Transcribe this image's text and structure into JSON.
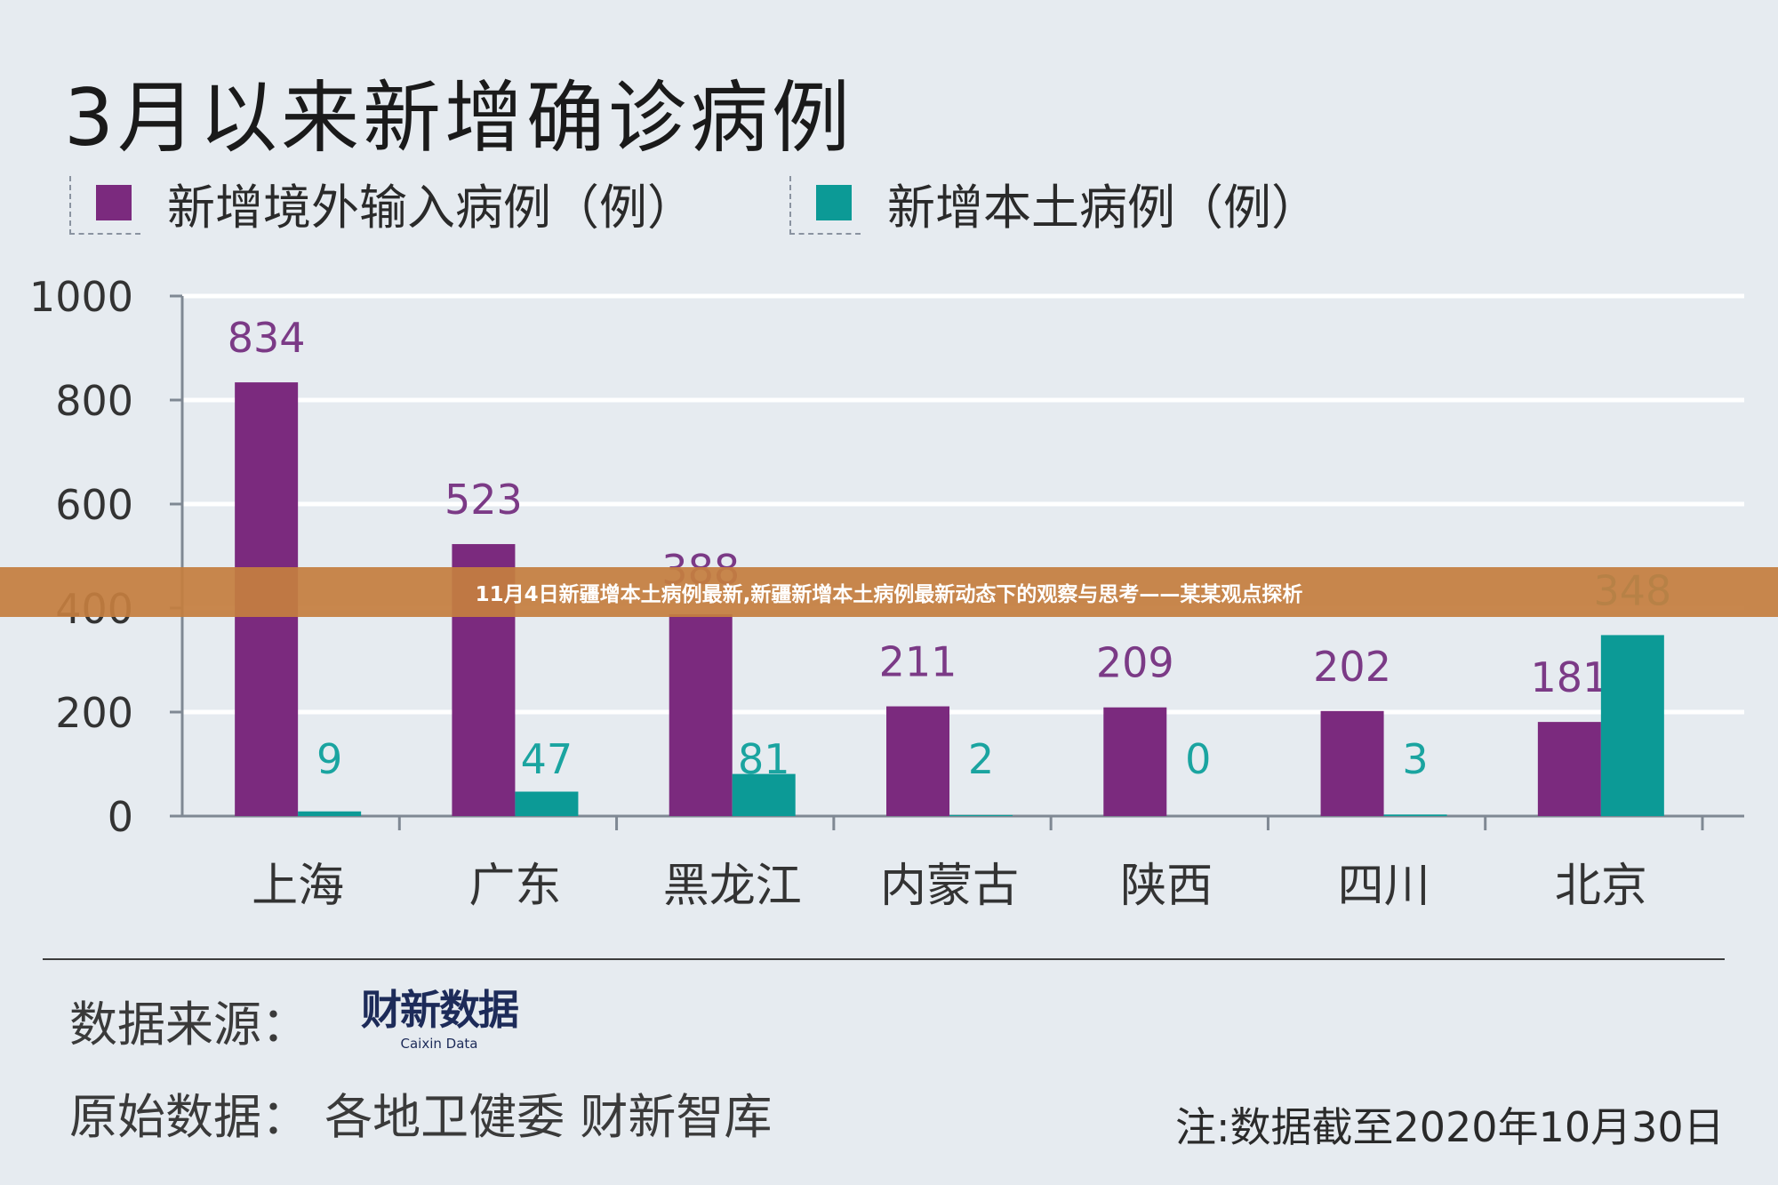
{
  "title": "3月以来新增确诊病例",
  "legend": [
    {
      "label": "新增境外输入病例（例）",
      "color": "#7b2a7e"
    },
    {
      "label": "新增本土病例（例）",
      "color": "#0c9a96"
    }
  ],
  "source_label": "数据来源：",
  "logo": {
    "cn": "财新数据",
    "en": "Caixin Data"
  },
  "origin": "原始数据：  各地卫健委  财新智库",
  "note": "注:数据截至2020年10月30日",
  "banner": "11月4日新疆增本土病例最新,新疆新增本土病例最新动态下的观察与思考——某某观点探析",
  "chart_data": {
    "type": "bar",
    "categories": [
      "上海",
      "广东",
      "黑龙江",
      "内蒙古",
      "陕西",
      "四川",
      "北京"
    ],
    "series": [
      {
        "name": "新增境外输入病例（例）",
        "values": [
          834,
          523,
          388,
          211,
          209,
          202,
          181
        ],
        "color": "#7b2a7e",
        "label_color": "#7b3a86"
      },
      {
        "name": "新增本土病例（例）",
        "values": [
          9,
          47,
          81,
          2,
          0,
          3,
          348
        ],
        "color": "#0c9a96",
        "label_color": "#1aa4a0"
      }
    ],
    "yticks": [
      0,
      200,
      400,
      600,
      800,
      1000
    ],
    "ylim": [
      0,
      1000
    ],
    "grid": true
  }
}
